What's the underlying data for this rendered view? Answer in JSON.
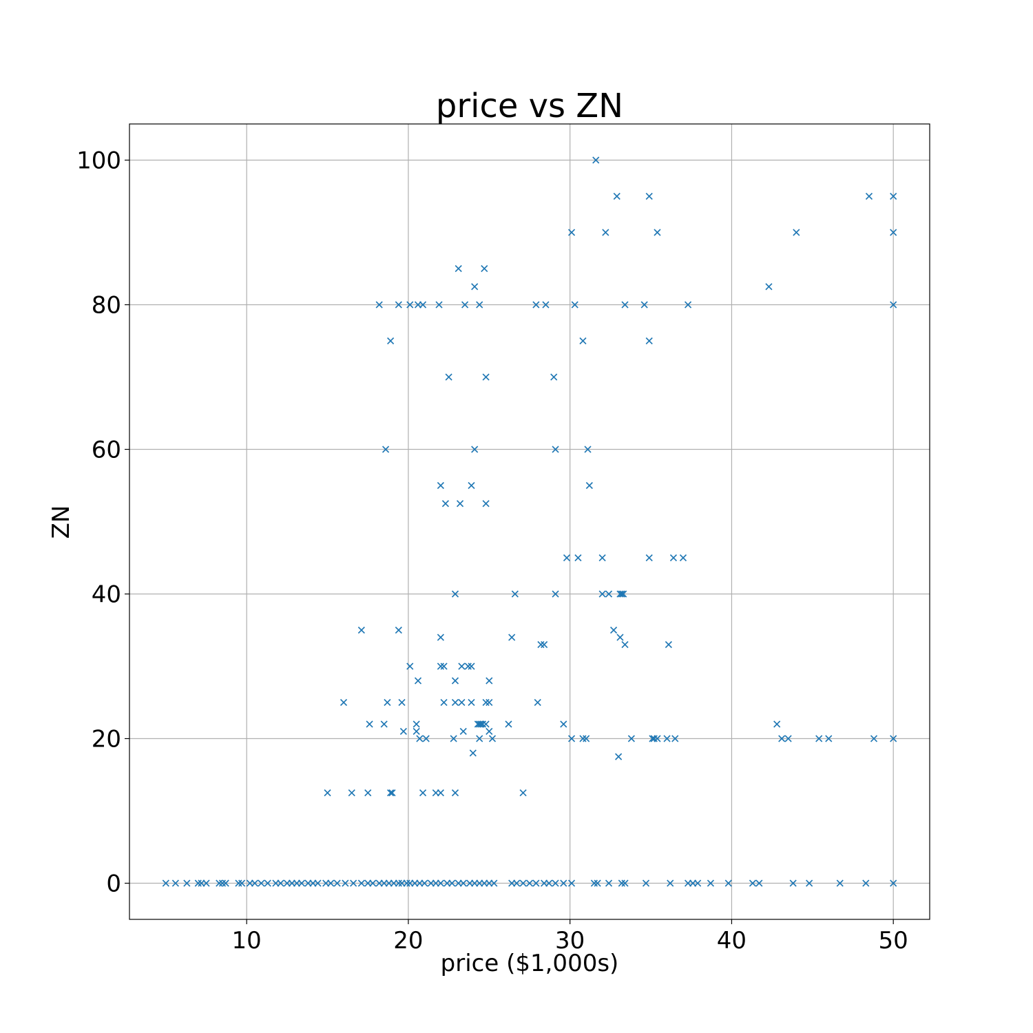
{
  "chart_data": {
    "type": "scatter",
    "title": "price vs ZN",
    "xlabel": "price ($1,000s)",
    "ylabel": "ZN",
    "xlim": [
      2.75,
      52.25
    ],
    "ylim": [
      -5,
      105
    ],
    "xticks": [
      10,
      20,
      30,
      40,
      50
    ],
    "yticks": [
      0,
      20,
      40,
      60,
      80,
      100
    ],
    "grid": true,
    "marker": "x",
    "color": "#1f77b4",
    "points": [
      [
        31.6,
        100
      ],
      [
        32.9,
        95
      ],
      [
        34.9,
        95
      ],
      [
        48.5,
        95
      ],
      [
        50.0,
        95
      ],
      [
        30.1,
        90
      ],
      [
        32.2,
        90
      ],
      [
        35.4,
        90
      ],
      [
        44.0,
        90
      ],
      [
        50.0,
        90
      ],
      [
        23.1,
        85
      ],
      [
        24.7,
        85
      ],
      [
        24.1,
        82.5
      ],
      [
        42.3,
        82.5
      ],
      [
        18.2,
        80
      ],
      [
        19.4,
        80
      ],
      [
        20.1,
        80
      ],
      [
        20.6,
        80
      ],
      [
        20.9,
        80
      ],
      [
        21.9,
        80
      ],
      [
        23.5,
        80
      ],
      [
        24.4,
        80
      ],
      [
        27.9,
        80
      ],
      [
        28.5,
        80
      ],
      [
        30.3,
        80
      ],
      [
        33.4,
        80
      ],
      [
        34.6,
        80
      ],
      [
        37.3,
        80
      ],
      [
        50.0,
        80
      ],
      [
        18.9,
        75
      ],
      [
        30.8,
        75
      ],
      [
        34.9,
        75
      ],
      [
        22.5,
        70
      ],
      [
        24.8,
        70
      ],
      [
        29.0,
        70
      ],
      [
        18.6,
        60
      ],
      [
        24.1,
        60
      ],
      [
        29.1,
        60
      ],
      [
        31.1,
        60
      ],
      [
        22.0,
        55
      ],
      [
        23.9,
        55
      ],
      [
        31.2,
        55
      ],
      [
        22.3,
        52.5
      ],
      [
        23.2,
        52.5
      ],
      [
        24.8,
        52.5
      ],
      [
        29.8,
        45
      ],
      [
        30.5,
        45
      ],
      [
        32.0,
        45
      ],
      [
        34.9,
        45
      ],
      [
        36.4,
        45
      ],
      [
        37.0,
        45
      ],
      [
        22.9,
        40
      ],
      [
        26.6,
        40
      ],
      [
        29.1,
        40
      ],
      [
        32.0,
        40
      ],
      [
        32.4,
        40
      ],
      [
        33.1,
        40
      ],
      [
        33.2,
        40
      ],
      [
        33.3,
        40
      ],
      [
        17.1,
        35
      ],
      [
        19.4,
        35
      ],
      [
        32.7,
        35
      ],
      [
        22.0,
        34
      ],
      [
        26.4,
        34
      ],
      [
        33.1,
        34
      ],
      [
        28.2,
        33
      ],
      [
        28.4,
        33
      ],
      [
        33.4,
        33
      ],
      [
        36.1,
        33
      ],
      [
        20.1,
        30
      ],
      [
        22.0,
        30
      ],
      [
        22.2,
        30
      ],
      [
        23.3,
        30
      ],
      [
        23.7,
        30
      ],
      [
        23.9,
        30
      ],
      [
        20.6,
        28
      ],
      [
        22.9,
        28
      ],
      [
        25.0,
        28
      ],
      [
        16.0,
        25
      ],
      [
        18.7,
        25
      ],
      [
        19.6,
        25
      ],
      [
        22.2,
        25
      ],
      [
        22.9,
        25
      ],
      [
        23.3,
        25
      ],
      [
        23.9,
        25
      ],
      [
        24.8,
        25
      ],
      [
        25.0,
        25
      ],
      [
        28.0,
        25
      ],
      [
        17.6,
        22
      ],
      [
        18.5,
        22
      ],
      [
        20.5,
        22
      ],
      [
        24.3,
        22
      ],
      [
        24.4,
        22
      ],
      [
        24.5,
        22
      ],
      [
        24.6,
        22
      ],
      [
        24.8,
        22
      ],
      [
        26.2,
        22
      ],
      [
        29.6,
        22
      ],
      [
        42.8,
        22
      ],
      [
        19.7,
        21
      ],
      [
        20.5,
        21
      ],
      [
        23.4,
        21
      ],
      [
        25.0,
        21
      ],
      [
        20.7,
        20
      ],
      [
        21.1,
        20
      ],
      [
        22.8,
        20
      ],
      [
        24.4,
        20
      ],
      [
        25.2,
        20
      ],
      [
        30.1,
        20
      ],
      [
        30.8,
        20
      ],
      [
        31.0,
        20
      ],
      [
        33.8,
        20
      ],
      [
        35.1,
        20
      ],
      [
        35.2,
        20
      ],
      [
        35.4,
        20
      ],
      [
        36.0,
        20
      ],
      [
        36.5,
        20
      ],
      [
        43.1,
        20
      ],
      [
        43.5,
        20
      ],
      [
        45.4,
        20
      ],
      [
        46.0,
        20
      ],
      [
        48.8,
        20
      ],
      [
        50.0,
        20
      ],
      [
        24.0,
        18
      ],
      [
        33.0,
        17.5
      ],
      [
        15.0,
        12.5
      ],
      [
        16.5,
        12.5
      ],
      [
        17.5,
        12.5
      ],
      [
        18.9,
        12.5
      ],
      [
        19.0,
        12.5
      ],
      [
        20.9,
        12.5
      ],
      [
        21.7,
        12.5
      ],
      [
        22.0,
        12.5
      ],
      [
        22.9,
        12.5
      ],
      [
        27.1,
        12.5
      ],
      [
        5.0,
        0
      ],
      [
        5.6,
        0
      ],
      [
        6.3,
        0
      ],
      [
        7.0,
        0
      ],
      [
        7.2,
        0
      ],
      [
        7.5,
        0
      ],
      [
        8.3,
        0
      ],
      [
        8.5,
        0
      ],
      [
        8.7,
        0
      ],
      [
        9.5,
        0
      ],
      [
        9.7,
        0
      ],
      [
        10.2,
        0
      ],
      [
        10.5,
        0
      ],
      [
        10.9,
        0
      ],
      [
        11.3,
        0
      ],
      [
        11.8,
        0
      ],
      [
        12.1,
        0
      ],
      [
        12.5,
        0
      ],
      [
        12.8,
        0
      ],
      [
        13.1,
        0
      ],
      [
        13.4,
        0
      ],
      [
        13.8,
        0
      ],
      [
        14.1,
        0
      ],
      [
        14.4,
        0
      ],
      [
        14.9,
        0
      ],
      [
        15.2,
        0
      ],
      [
        15.6,
        0
      ],
      [
        16.1,
        0
      ],
      [
        16.6,
        0
      ],
      [
        17.1,
        0
      ],
      [
        17.5,
        0
      ],
      [
        17.8,
        0
      ],
      [
        18.2,
        0
      ],
      [
        18.5,
        0
      ],
      [
        18.8,
        0
      ],
      [
        19.1,
        0
      ],
      [
        19.4,
        0
      ],
      [
        19.6,
        0
      ],
      [
        19.9,
        0
      ],
      [
        20.1,
        0
      ],
      [
        20.4,
        0
      ],
      [
        20.7,
        0
      ],
      [
        21.0,
        0
      ],
      [
        21.4,
        0
      ],
      [
        21.7,
        0
      ],
      [
        22.0,
        0
      ],
      [
        22.4,
        0
      ],
      [
        22.7,
        0
      ],
      [
        23.1,
        0
      ],
      [
        23.4,
        0
      ],
      [
        23.8,
        0
      ],
      [
        24.1,
        0
      ],
      [
        24.4,
        0
      ],
      [
        24.7,
        0
      ],
      [
        25.0,
        0
      ],
      [
        25.3,
        0
      ],
      [
        26.4,
        0
      ],
      [
        26.7,
        0
      ],
      [
        27.1,
        0
      ],
      [
        27.5,
        0
      ],
      [
        27.9,
        0
      ],
      [
        28.4,
        0
      ],
      [
        28.7,
        0
      ],
      [
        29.1,
        0
      ],
      [
        29.6,
        0
      ],
      [
        30.1,
        0
      ],
      [
        31.5,
        0
      ],
      [
        31.7,
        0
      ],
      [
        32.4,
        0
      ],
      [
        33.2,
        0
      ],
      [
        33.4,
        0
      ],
      [
        34.7,
        0
      ],
      [
        36.2,
        0
      ],
      [
        37.3,
        0
      ],
      [
        37.6,
        0
      ],
      [
        37.9,
        0
      ],
      [
        38.7,
        0
      ],
      [
        39.8,
        0
      ],
      [
        41.3,
        0
      ],
      [
        41.7,
        0
      ],
      [
        43.8,
        0
      ],
      [
        44.8,
        0
      ],
      [
        46.7,
        0
      ],
      [
        48.3,
        0
      ],
      [
        50.0,
        0
      ]
    ]
  }
}
